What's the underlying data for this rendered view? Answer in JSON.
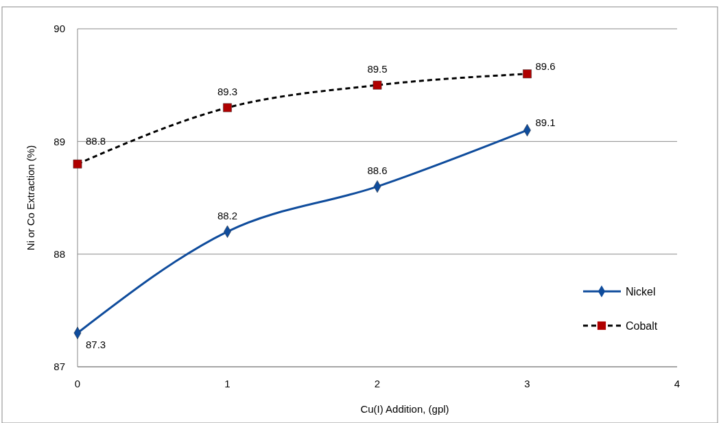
{
  "chart_data": {
    "type": "line",
    "xlabel": "Cu(I) Addition, (gpl)",
    "ylabel": "Ni or Co Extraction (%)",
    "x": [
      0,
      1,
      2,
      3
    ],
    "xlim": [
      0,
      4
    ],
    "xticks": [
      0,
      1,
      2,
      3,
      4
    ],
    "ylim": [
      87,
      90
    ],
    "yticks": [
      87,
      88,
      89,
      90
    ],
    "grid": "y",
    "legend": "right",
    "data_labels": true,
    "series": [
      {
        "name": "Nickel",
        "color": "#0f4c9c",
        "values": [
          87.3,
          88.2,
          88.6,
          89.1
        ],
        "marker": "diamond",
        "line_style": "solid"
      },
      {
        "name": "Cobalt",
        "color": "#000000",
        "colors": [
          "#b00000",
          "#b00000",
          "#b00000",
          "#b00000"
        ],
        "values": [
          88.8,
          89.3,
          89.5,
          89.6
        ],
        "marker": "square",
        "line_style": "dashed"
      }
    ]
  }
}
